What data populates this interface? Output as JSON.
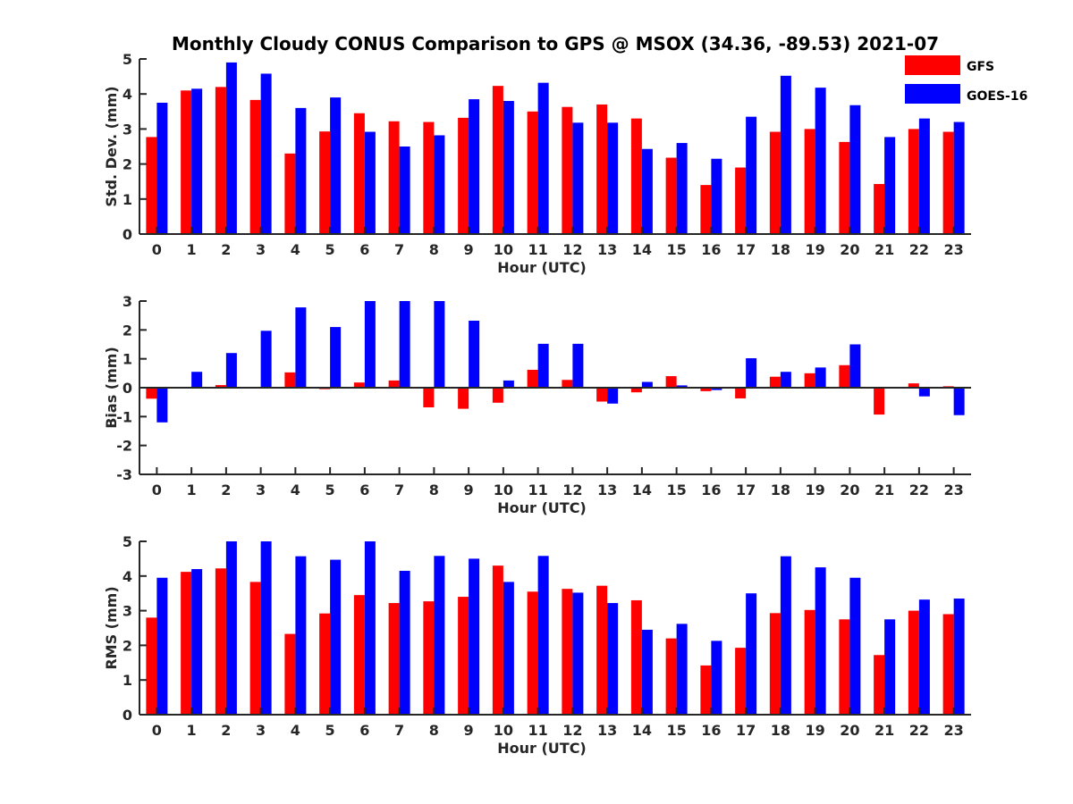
{
  "title": "Monthly Cloudy CONUS Comparison to GPS @ MSOX (34.36, -89.53) 2021-07",
  "legend": [
    {
      "name": "GFS",
      "color": "#ff0000"
    },
    {
      "name": "GOES-16",
      "color": "#0000ff"
    }
  ],
  "chart_data": [
    {
      "type": "bar",
      "xlabel": "Hour (UTC)",
      "ylabel": "Std. Dev. (mm)",
      "ylim": [
        0,
        5
      ],
      "yticks": [
        0,
        1,
        2,
        3,
        4,
        5
      ],
      "categories": [
        "0",
        "1",
        "2",
        "3",
        "4",
        "5",
        "6",
        "7",
        "8",
        "9",
        "10",
        "11",
        "12",
        "13",
        "14",
        "15",
        "16",
        "17",
        "18",
        "19",
        "20",
        "21",
        "22",
        "23"
      ],
      "legend_position": "top-right, outside",
      "series": [
        {
          "name": "GFS",
          "color": "#ff0000",
          "values": [
            2.77,
            4.1,
            4.2,
            3.83,
            2.3,
            2.93,
            3.45,
            3.22,
            3.2,
            3.32,
            4.23,
            3.5,
            3.63,
            3.7,
            3.3,
            2.18,
            1.4,
            1.9,
            2.92,
            3.0,
            2.63,
            1.43,
            3.0,
            2.92
          ]
        },
        {
          "name": "GOES-16",
          "color": "#0000ff",
          "values": [
            3.75,
            4.15,
            4.9,
            4.58,
            3.6,
            3.9,
            2.92,
            2.5,
            2.82,
            3.85,
            3.8,
            4.32,
            3.18,
            3.18,
            2.43,
            2.6,
            2.15,
            3.35,
            4.52,
            4.18,
            3.68,
            2.77,
            3.3,
            3.2
          ]
        }
      ]
    },
    {
      "type": "bar",
      "xlabel": "Hour (UTC)",
      "ylabel": "Bias (mm)",
      "ylim": [
        -3,
        3
      ],
      "yticks": [
        -3,
        -2,
        -1,
        0,
        1,
        2,
        3
      ],
      "categories": [
        "0",
        "1",
        "2",
        "3",
        "4",
        "5",
        "6",
        "7",
        "8",
        "9",
        "10",
        "11",
        "12",
        "13",
        "14",
        "15",
        "16",
        "17",
        "18",
        "19",
        "20",
        "21",
        "22",
        "23"
      ],
      "series": [
        {
          "name": "GFS",
          "color": "#ff0000",
          "values": [
            -0.38,
            0.0,
            0.09,
            -0.03,
            0.53,
            -0.05,
            0.18,
            0.25,
            -0.68,
            -0.73,
            -0.52,
            0.62,
            0.27,
            -0.48,
            -0.16,
            0.4,
            -0.12,
            -0.37,
            0.38,
            0.5,
            0.78,
            -0.93,
            0.15,
            0.05
          ]
        },
        {
          "name": "GOES-16",
          "color": "#0000ff",
          "values": [
            -1.2,
            0.55,
            1.2,
            1.97,
            2.78,
            2.1,
            3.0,
            3.0,
            3.0,
            2.32,
            0.25,
            1.52,
            1.52,
            -0.55,
            0.2,
            0.08,
            -0.08,
            1.02,
            0.55,
            0.7,
            1.5,
            0.02,
            -0.3,
            -0.95
          ]
        }
      ]
    },
    {
      "type": "bar",
      "xlabel": "Hour (UTC)",
      "ylabel": "RMS (mm)",
      "ylim": [
        0,
        5
      ],
      "yticks": [
        0,
        1,
        2,
        3,
        4,
        5
      ],
      "categories": [
        "0",
        "1",
        "2",
        "3",
        "4",
        "5",
        "6",
        "7",
        "8",
        "9",
        "10",
        "11",
        "12",
        "13",
        "14",
        "15",
        "16",
        "17",
        "18",
        "19",
        "20",
        "21",
        "22",
        "23"
      ],
      "series": [
        {
          "name": "GFS",
          "color": "#ff0000",
          "values": [
            2.8,
            4.12,
            4.22,
            3.83,
            2.33,
            2.92,
            3.45,
            3.22,
            3.27,
            3.4,
            4.3,
            3.55,
            3.63,
            3.72,
            3.3,
            2.2,
            1.42,
            1.93,
            2.93,
            3.02,
            2.75,
            1.72,
            3.0,
            2.9
          ]
        },
        {
          "name": "GOES-16",
          "color": "#0000ff",
          "values": [
            3.95,
            4.2,
            5.0,
            5.0,
            4.57,
            4.47,
            5.0,
            4.15,
            4.58,
            4.5,
            3.83,
            4.58,
            3.52,
            3.22,
            2.45,
            2.62,
            2.13,
            3.5,
            4.57,
            4.25,
            3.95,
            2.75,
            3.32,
            3.35
          ]
        }
      ]
    }
  ]
}
